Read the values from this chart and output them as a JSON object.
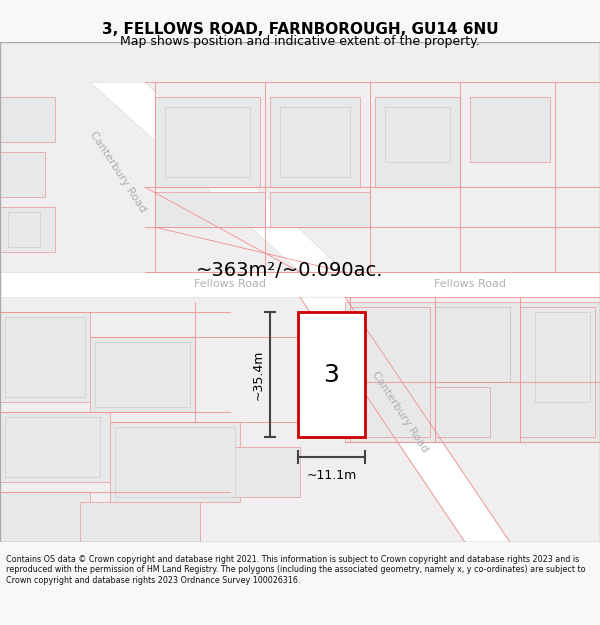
{
  "title": "3, FELLOWS ROAD, FARNBOROUGH, GU14 6NU",
  "subtitle": "Map shows position and indicative extent of the property.",
  "area_label": "~363m²/~0.090ac.",
  "dim_width": "~11.1m",
  "dim_height": "~35.4m",
  "property_number": "3",
  "copyright": "Contains OS data © Crown copyright and database right 2021. This information is subject to Crown copyright and database rights 2023 and is reproduced with the permission of HM Land Registry. The polygons (including the associated geometry, namely x, y co-ordinates) are subject to Crown copyright and database rights 2023 Ordnance Survey 100026316.",
  "bg_color": "#f8f8f8",
  "map_bg": "#f0eeee",
  "bld_fill": "#e8e8e8",
  "bld_edge_pink": "#e8b0b0",
  "bld_edge_gray": "#cccccc",
  "road_fill": "#ffffff",
  "prop_edge": "#cc0000",
  "prop_fill": "#ffffff",
  "road_label_color": "#b0b0b0",
  "title_fontsize": 11,
  "subtitle_fontsize": 9
}
